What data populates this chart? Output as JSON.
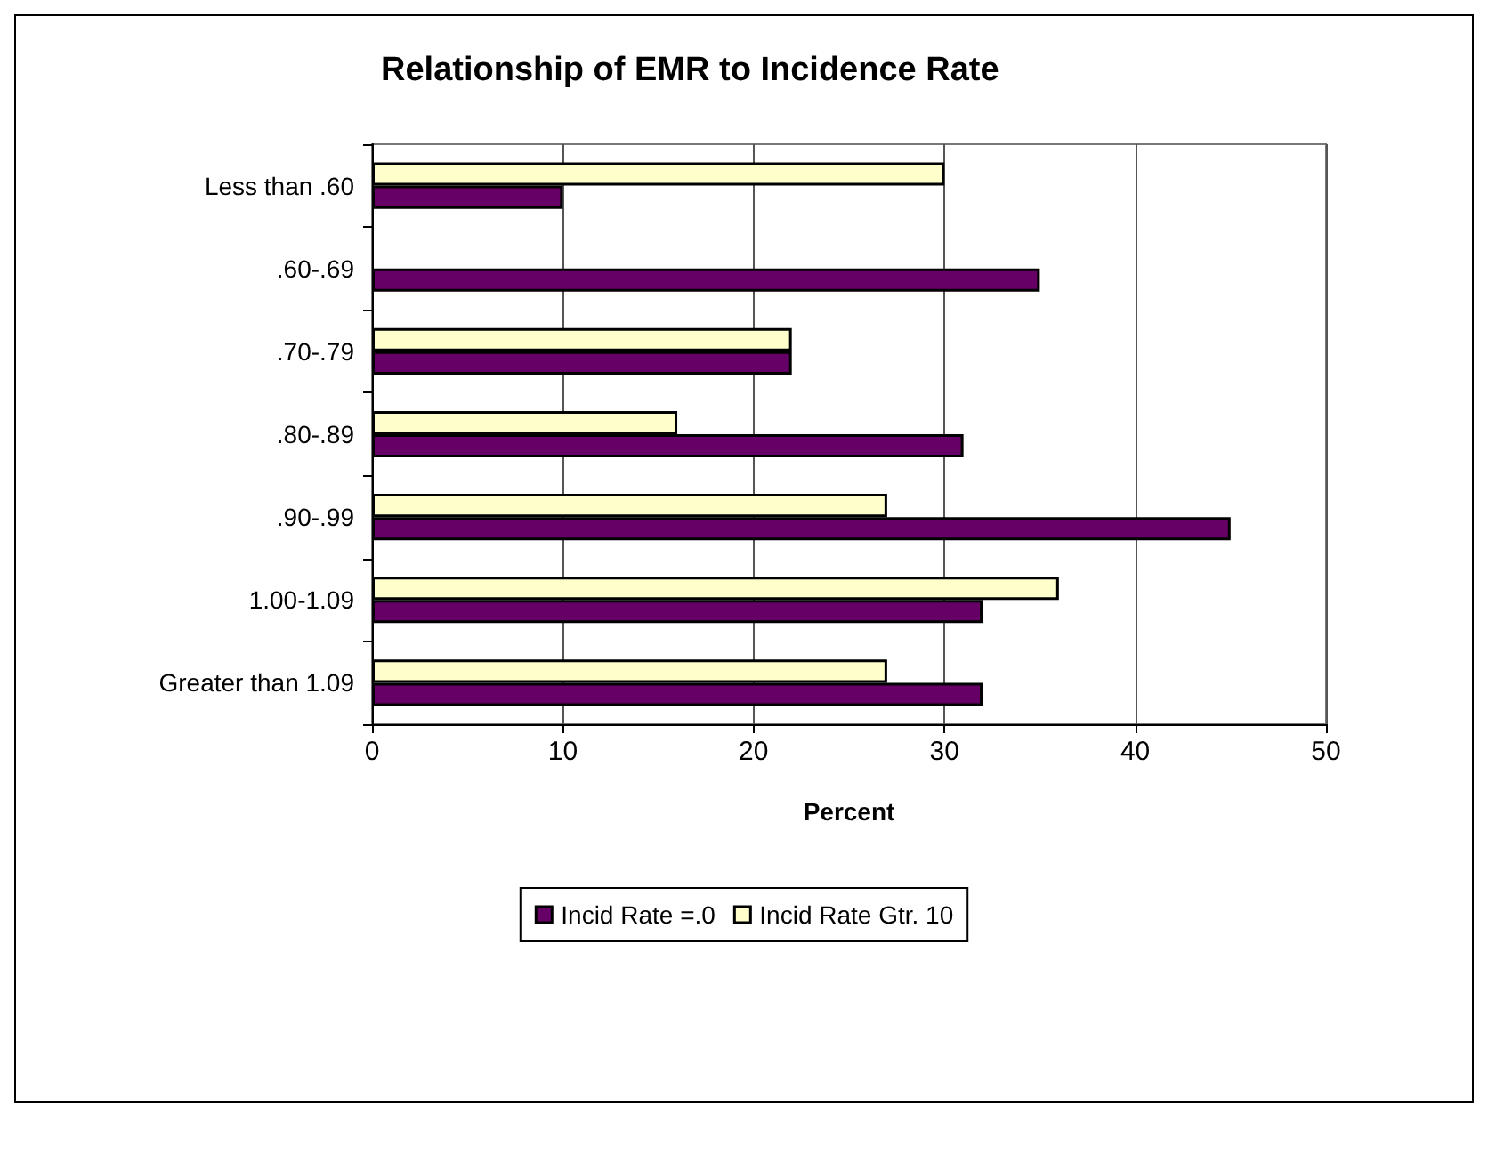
{
  "chart_data": {
    "type": "bar",
    "orientation": "horizontal",
    "title": "Relationship of EMR to Incidence Rate",
    "xlabel": "Percent",
    "categories": [
      "Less than .60",
      ".60-.69",
      ".70-.79",
      ".80-.89",
      ".90-.99",
      "1.00-1.09",
      "Greater than 1.09"
    ],
    "series": [
      {
        "name": "Incid Rate =.0",
        "color": "#660066",
        "values": [
          10,
          35,
          22,
          31,
          45,
          32,
          32
        ]
      },
      {
        "name": "Incid Rate Gtr. 10",
        "color": "#ffffcc",
        "values": [
          30,
          null,
          22,
          16,
          27,
          36,
          27
        ]
      }
    ],
    "xlim": [
      0,
      50
    ],
    "xticks": [
      0,
      10,
      20,
      30,
      40,
      50
    ],
    "grid": "x",
    "legend": "bottom"
  }
}
